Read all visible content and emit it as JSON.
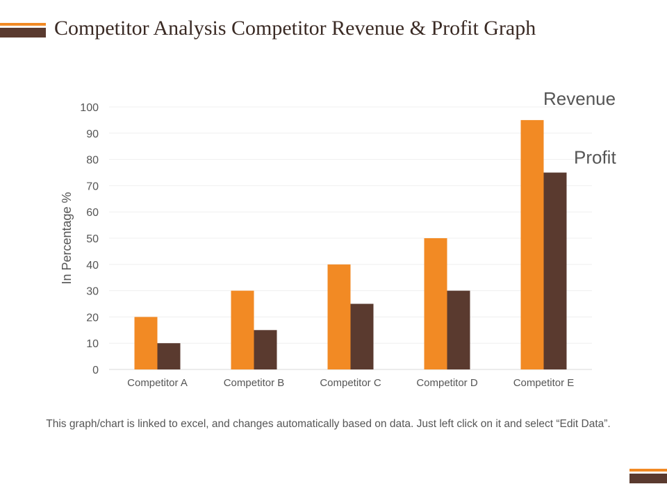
{
  "page": {
    "title": "Competitor Analysis Competitor Revenue & Profit Graph",
    "footnote": "This graph/chart is linked to excel, and changes automatically based on data. Just left click on it and select “Edit Data”."
  },
  "colors": {
    "revenue": "#F28A24",
    "profit": "#5A3A2F",
    "gridline": "#EFEFEF",
    "axis": "#D9D9D9"
  },
  "chart_data": {
    "type": "bar",
    "title": "",
    "xlabel": "",
    "ylabel": "In Percentage %",
    "ylim": [
      0,
      100
    ],
    "yticks": [
      0,
      10,
      20,
      30,
      40,
      50,
      60,
      70,
      80,
      90,
      100
    ],
    "grid": true,
    "categories": [
      "Competitor A",
      "Competitor B",
      "Competitor C",
      "Competitor D",
      "Competitor E"
    ],
    "series": [
      {
        "name": "Revenue",
        "values": [
          20,
          30,
          40,
          50,
          95
        ]
      },
      {
        "name": "Profit",
        "values": [
          10,
          15,
          25,
          30,
          75
        ]
      }
    ]
  }
}
